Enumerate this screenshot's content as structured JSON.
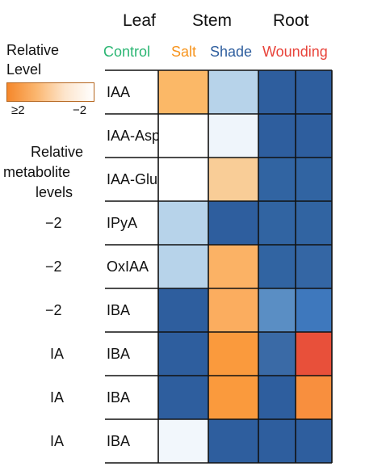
{
  "header": {
    "tissues": [
      "Leaf",
      "Stem",
      "Root"
    ],
    "conditions": [
      {
        "label": "Control",
        "color": "#2bb673"
      },
      {
        "label": "Salt",
        "color": "#f7941d"
      },
      {
        "label": "Shade",
        "color": "#2e5e9e"
      },
      {
        "label": "Wounding",
        "color": "#e8433a"
      }
    ]
  },
  "legend": {
    "title_line1": "Relative",
    "title_line2": "Level",
    "min_label": "≥2",
    "max_label": "−2",
    "subtitle_line1": "Relative",
    "subtitle_line2": "metabolite",
    "subtitle_line3": "levels"
  },
  "side_labels": [
    "",
    "",
    "",
    "−2",
    "−2",
    "−2",
    "IA",
    "IA",
    "IA"
  ],
  "chart_data": {
    "type": "heatmap",
    "rows": [
      "IAA",
      "IAA-Asp",
      "IAA-Glu",
      "IPyA",
      "OxIAA",
      "IBA",
      "IBA",
      "IBA",
      "IBA"
    ],
    "columns": 4,
    "colors": [
      [
        "#fbb867",
        "#b7d3ea",
        "#2e5e9e",
        "#2e5e9e"
      ],
      [
        "#ffffff",
        "#eff5fb",
        "#2e5e9e",
        "#2e5e9e"
      ],
      [
        "#ffffff",
        "#f9cd97",
        "#3164a2",
        "#3164a2"
      ],
      [
        "#b7d3ea",
        "#2e5e9e",
        "#3164a2",
        "#3164a2"
      ],
      [
        "#b7d3ea",
        "#fbb265",
        "#3164a2",
        "#3466a4"
      ],
      [
        "#2e5e9e",
        "#fbad5f",
        "#5a8ec4",
        "#3e78bd"
      ],
      [
        "#2e5e9e",
        "#fa9a3d",
        "#3a6aa6",
        "#e8503a"
      ],
      [
        "#2e5e9e",
        "#fa9a3d",
        "#2e5e9e",
        "#f88f3e"
      ],
      [
        "#f2f7fc",
        "#2e5e9e",
        "#2e5e9e",
        "#2e5e9e"
      ]
    ]
  }
}
